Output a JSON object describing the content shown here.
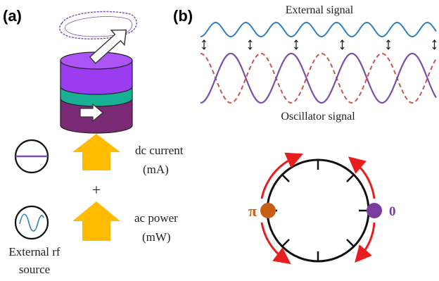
{
  "panel_a": {
    "label": "(a)",
    "dc_label_line1": "dc current",
    "dc_label_line2": "(mA)",
    "plus_sign": "+",
    "ac_label_line1": "ac power",
    "ac_label_line2": "(mW)",
    "source_label_line1": "External rf",
    "source_label_line2": "source"
  },
  "panel_b": {
    "label": "(b)",
    "external_signal_title": "External signal",
    "oscillator_signal_title": "Oscillator signal",
    "phase_pi": "π",
    "phase_zero": "0"
  },
  "colors": {
    "external_wave": "#2f7fc1",
    "oscillator_solid": "#7a4fa8",
    "oscillator_dashed": "#c8574f",
    "arrow_orange": "#ffbb00",
    "arc_red": "#e81e1e",
    "pi_dot": "#c65f14",
    "zero_dot": "#7b3ba0",
    "layer_top": "#9b3cf0",
    "layer_mid": "#18b094",
    "layer_bottom": "#7a2a75"
  }
}
